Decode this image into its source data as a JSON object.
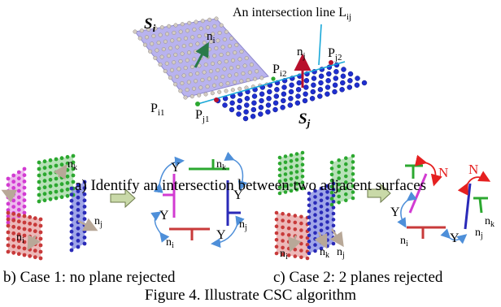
{
  "panel_a": {
    "surface_i": "S",
    "surface_i_sub": "i",
    "surface_j": "S",
    "surface_j_sub": "j",
    "normal_i": "n",
    "normal_i_sub": "i",
    "normal_j": "n",
    "normal_j_sub": "j",
    "intersection_label": "An intersection line L",
    "intersection_label_sub": "ij",
    "p_i1": "P",
    "p_i1_sub": "i1",
    "p_i2": "P",
    "p_i2_sub": "i2",
    "p_j1": "P",
    "p_j1_sub": "j1",
    "p_j2": "P",
    "p_j2_sub": "j2",
    "caption": "a) Identify an intersection between two adjacent surfaces"
  },
  "panel_b": {
    "n_k": "n",
    "n_k_sub": "k",
    "n_i": "n",
    "n_i_sub": "i",
    "n_j": "n",
    "n_j_sub": "j",
    "accept": "Y",
    "caption": "b) Case 1: no plane rejected"
  },
  "panel_c": {
    "n_k": "n",
    "n_k_sub": "k",
    "n_i": "n",
    "n_i_sub": "i",
    "n_j": "n",
    "n_j_sub": "j",
    "accept": "Y",
    "reject": "N",
    "caption": "c) Case 2: 2 planes rejected"
  },
  "figure_caption": "Figure 4. Illustrate CSC algorithm",
  "colors": {
    "surface_i_fill": "#b9b3ee",
    "surface_i_dot": "#c8bfb6",
    "surface_j_dot": "#1f2fd0",
    "magenta": "#d23bd2",
    "green": "#2ca830",
    "red": "#c83a3a",
    "blue": "#2a2ab8",
    "normal_red": "#b8102c",
    "cyan": "#1aa8d8",
    "arrow_blue": "#4e8fd9",
    "arrow_red": "#e52020",
    "block_arrow": "#c9d9a8"
  }
}
